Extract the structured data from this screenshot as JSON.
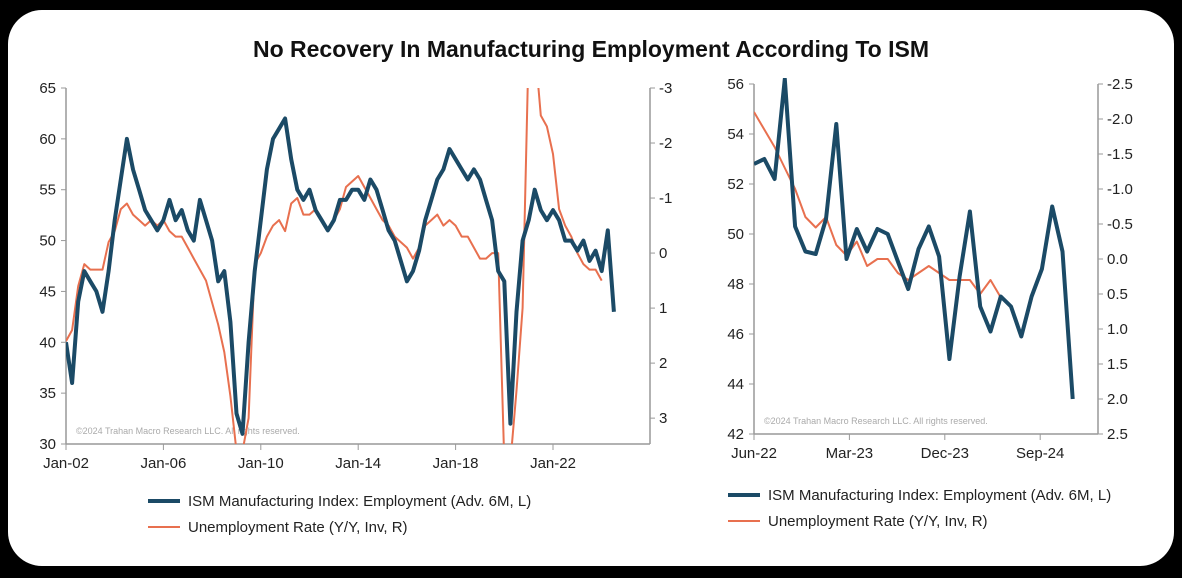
{
  "title": "No Recovery In Manufacturing Employment According To ISM",
  "colors": {
    "ism": "#1b4a66",
    "unemp": "#e8704f",
    "axis": "#999999"
  },
  "chart_data": [
    {
      "type": "line",
      "title": "",
      "copyright": "©2024 Trahan Macro Research LLC. All rights reserved.",
      "x_ticks": [
        "Jan-02",
        "Jan-06",
        "Jan-10",
        "Jan-14",
        "Jan-18",
        "Jan-22"
      ],
      "x_tick_years": [
        2002,
        2006,
        2010,
        2014,
        2018,
        2022
      ],
      "xlim": [
        2002,
        2026
      ],
      "ylim_left": [
        30,
        65
      ],
      "yticks_left": [
        "65",
        "60",
        "55",
        "50",
        "45",
        "40",
        "35",
        "30"
      ],
      "ylim_right_inverted": [
        -3,
        3.47
      ],
      "yticks_right": [
        "-3",
        "-2",
        "-1",
        "0",
        "1",
        "2",
        "3"
      ],
      "x_start": 2002,
      "x_step": 0.25,
      "series": [
        {
          "name": "ISM Manufacturing Index: Employment (Adv. 6M, L)",
          "axis": "left",
          "values": [
            40,
            36,
            44,
            47,
            46,
            45,
            43,
            47,
            52,
            56,
            60,
            57,
            55,
            53,
            52,
            51,
            52,
            54,
            52,
            53,
            51,
            50,
            54,
            52,
            50,
            46,
            47,
            42,
            33,
            31,
            40,
            47,
            52,
            57,
            60,
            61,
            62,
            58,
            55,
            54,
            55,
            53,
            52,
            51,
            52,
            54,
            54,
            55,
            55,
            54,
            56,
            55,
            53,
            51,
            50,
            48,
            46,
            47,
            49,
            52,
            54,
            56,
            57,
            59,
            58,
            57,
            56,
            57,
            56,
            54,
            52,
            47,
            46,
            32,
            43,
            50,
            52,
            55,
            53,
            52,
            53,
            52,
            50,
            50,
            49,
            50,
            48,
            49,
            47,
            51,
            43
          ]
        },
        {
          "name": "Unemployment Rate (Y/Y, Inv, R)",
          "axis": "right",
          "values": [
            1.6,
            1.4,
            0.6,
            0.2,
            0.3,
            0.3,
            0.3,
            -0.2,
            -0.4,
            -0.8,
            -0.9,
            -0.7,
            -0.6,
            -0.5,
            -0.6,
            -0.5,
            -0.6,
            -0.4,
            -0.3,
            -0.3,
            -0.1,
            0.1,
            0.3,
            0.5,
            0.9,
            1.3,
            1.8,
            2.6,
            3.6,
            3.6,
            3.0,
            0.2,
            0.0,
            -0.3,
            -0.5,
            -0.6,
            -0.4,
            -0.9,
            -1.0,
            -0.7,
            -0.7,
            -0.8,
            -0.6,
            -0.4,
            -0.6,
            -0.8,
            -1.2,
            -1.3,
            -1.4,
            -1.2,
            -1.0,
            -0.8,
            -0.6,
            -0.5,
            -0.3,
            -0.2,
            -0.1,
            0.1,
            -0.1,
            -0.5,
            -0.6,
            -0.7,
            -0.5,
            -0.6,
            -0.5,
            -0.3,
            -0.3,
            -0.1,
            0.1,
            0.1,
            0.0,
            0.0,
            3.8,
            3.8,
            2.5,
            1.0,
            -3.8,
            -3.8,
            -2.5,
            -2.3,
            -1.8,
            -0.8,
            -0.5,
            -0.3,
            0.0,
            0.2,
            0.3,
            0.3,
            0.5
          ]
        }
      ]
    },
    {
      "type": "line",
      "copyright": "©2024 Trahan Macro Research LLC. All rights reserved.",
      "x_ticks": [
        "Jun-22",
        "Mar-23",
        "Dec-23",
        "Sep-24"
      ],
      "x_tick_months": [
        0,
        9,
        18,
        27
      ],
      "xlim_months": [
        0,
        32.5
      ],
      "ylim_left": [
        42,
        56
      ],
      "yticks_left": [
        "56",
        "54",
        "52",
        "50",
        "48",
        "46",
        "44",
        "42"
      ],
      "ylim_right_inverted": [
        -2.5,
        2.5
      ],
      "yticks_right": [
        "-2.5",
        "-2.0",
        "-1.5",
        "-1.0",
        "-0.5",
        "0.0",
        "0.5",
        "1.0",
        "1.5",
        "2.0",
        "2.5"
      ],
      "series": [
        {
          "name": "ISM Manufacturing Index: Employment (Adv. 6M, L)",
          "axis": "left",
          "values": [
            52.8,
            53.0,
            52.2,
            56.2,
            50.3,
            49.3,
            49.2,
            50.6,
            54.4,
            49.0,
            50.2,
            49.3,
            50.2,
            50.0,
            48.9,
            47.8,
            49.4,
            50.3,
            49.1,
            45.0,
            48.3,
            50.9,
            47.1,
            46.1,
            47.5,
            47.1,
            45.9,
            47.5,
            48.6,
            51.1,
            49.3,
            43.4
          ]
        },
        {
          "name": "Unemployment Rate (Y/Y, Inv, R)",
          "axis": "right",
          "values": [
            -2.1,
            -1.85,
            -1.6,
            -1.3,
            -1.0,
            -0.6,
            -0.45,
            -0.6,
            -0.2,
            -0.05,
            -0.25,
            0.1,
            0.0,
            0.0,
            0.2,
            0.3,
            0.2,
            0.1,
            0.2,
            0.3,
            0.3,
            0.3,
            0.5,
            0.3,
            0.55
          ]
        }
      ]
    }
  ]
}
